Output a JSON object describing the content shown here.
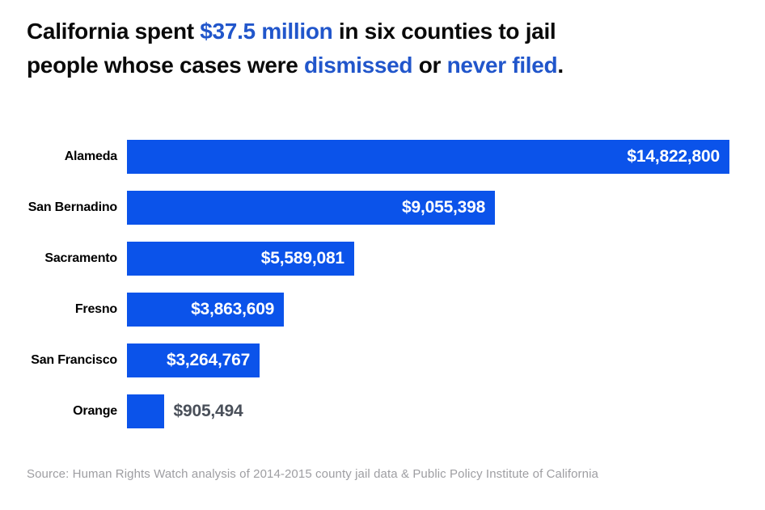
{
  "title": {
    "full_text": "California spent $37.5 million in six counties to jail people whose cases were dismissed or never filed.",
    "segments": [
      {
        "text": "California spent ",
        "color": "black"
      },
      {
        "text": "$37.5 million",
        "color": "blue"
      },
      {
        "text": " in six counties to jail\npeople whose cases were ",
        "color": "black"
      },
      {
        "text": "dismissed",
        "color": "blue"
      },
      {
        "text": " or ",
        "color": "black"
      },
      {
        "text": "never filed",
        "color": "blue"
      },
      {
        "text": ".",
        "color": "black"
      }
    ]
  },
  "source": "Source: Human Rights Watch analysis of 2014-2015 county jail data & Public Policy Institute of California",
  "colors": {
    "background": "#ffffff",
    "bar": "#0b53ea",
    "accent_text": "#2156cb",
    "title_text": "#0a0a0a",
    "category_text": "#000000",
    "value_inside": "#ffffff",
    "value_outside": "#4a505a",
    "source_text": "#9e9ea2"
  },
  "chart_data": {
    "type": "bar",
    "orientation": "horizontal",
    "title": "California spent $37.5 million in six counties to jail people whose cases were dismissed or never filed.",
    "categories": [
      "Alameda",
      "San Bernadino",
      "Sacramento",
      "Fresno",
      "San Francisco",
      "Orange"
    ],
    "values": [
      14822800,
      9055398,
      5589081,
      3863609,
      3264767,
      905494
    ],
    "value_labels": [
      "$14,822,800",
      "$9,055,398",
      "$5,589,081",
      "$3,863,609",
      "$3,264,767",
      "$905,494"
    ],
    "value_label_position": [
      "inside",
      "inside",
      "inside",
      "inside",
      "inside",
      "outside"
    ],
    "xlabel": "",
    "ylabel": "",
    "xlim": [
      0,
      14822800
    ],
    "grid": false,
    "legend": false,
    "axis_ticks_visible": false
  }
}
